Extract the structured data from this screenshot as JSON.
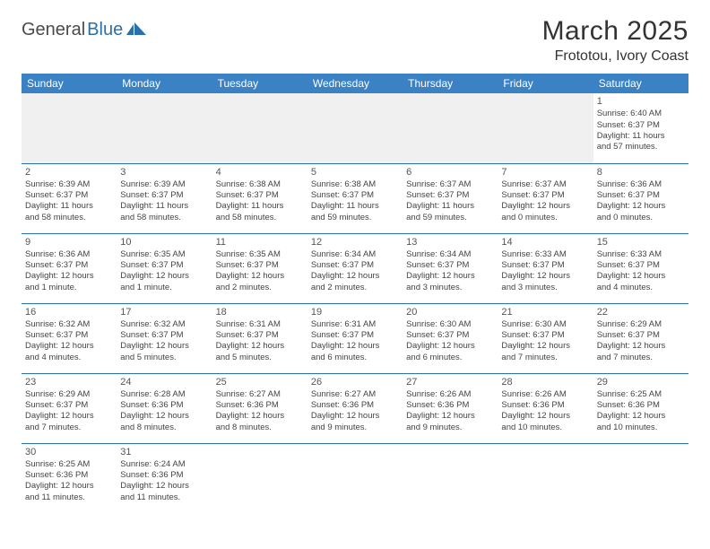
{
  "logo": {
    "general": "General",
    "blue": "Blue",
    "icon_color": "#2b6fab"
  },
  "title": "March 2025",
  "location": "Frototou, Ivory Coast",
  "header_bg": "#3b82c4",
  "header_fg": "#ffffff",
  "cell_border": "#2b6fab",
  "weekdays": [
    "Sunday",
    "Monday",
    "Tuesday",
    "Wednesday",
    "Thursday",
    "Friday",
    "Saturday"
  ],
  "weeks": [
    [
      null,
      null,
      null,
      null,
      null,
      null,
      {
        "n": "1",
        "sr": "Sunrise: 6:40 AM",
        "ss": "Sunset: 6:37 PM",
        "d1": "Daylight: 11 hours",
        "d2": "and 57 minutes."
      }
    ],
    [
      {
        "n": "2",
        "sr": "Sunrise: 6:39 AM",
        "ss": "Sunset: 6:37 PM",
        "d1": "Daylight: 11 hours",
        "d2": "and 58 minutes."
      },
      {
        "n": "3",
        "sr": "Sunrise: 6:39 AM",
        "ss": "Sunset: 6:37 PM",
        "d1": "Daylight: 11 hours",
        "d2": "and 58 minutes."
      },
      {
        "n": "4",
        "sr": "Sunrise: 6:38 AM",
        "ss": "Sunset: 6:37 PM",
        "d1": "Daylight: 11 hours",
        "d2": "and 58 minutes."
      },
      {
        "n": "5",
        "sr": "Sunrise: 6:38 AM",
        "ss": "Sunset: 6:37 PM",
        "d1": "Daylight: 11 hours",
        "d2": "and 59 minutes."
      },
      {
        "n": "6",
        "sr": "Sunrise: 6:37 AM",
        "ss": "Sunset: 6:37 PM",
        "d1": "Daylight: 11 hours",
        "d2": "and 59 minutes."
      },
      {
        "n": "7",
        "sr": "Sunrise: 6:37 AM",
        "ss": "Sunset: 6:37 PM",
        "d1": "Daylight: 12 hours",
        "d2": "and 0 minutes."
      },
      {
        "n": "8",
        "sr": "Sunrise: 6:36 AM",
        "ss": "Sunset: 6:37 PM",
        "d1": "Daylight: 12 hours",
        "d2": "and 0 minutes."
      }
    ],
    [
      {
        "n": "9",
        "sr": "Sunrise: 6:36 AM",
        "ss": "Sunset: 6:37 PM",
        "d1": "Daylight: 12 hours",
        "d2": "and 1 minute."
      },
      {
        "n": "10",
        "sr": "Sunrise: 6:35 AM",
        "ss": "Sunset: 6:37 PM",
        "d1": "Daylight: 12 hours",
        "d2": "and 1 minute."
      },
      {
        "n": "11",
        "sr": "Sunrise: 6:35 AM",
        "ss": "Sunset: 6:37 PM",
        "d1": "Daylight: 12 hours",
        "d2": "and 2 minutes."
      },
      {
        "n": "12",
        "sr": "Sunrise: 6:34 AM",
        "ss": "Sunset: 6:37 PM",
        "d1": "Daylight: 12 hours",
        "d2": "and 2 minutes."
      },
      {
        "n": "13",
        "sr": "Sunrise: 6:34 AM",
        "ss": "Sunset: 6:37 PM",
        "d1": "Daylight: 12 hours",
        "d2": "and 3 minutes."
      },
      {
        "n": "14",
        "sr": "Sunrise: 6:33 AM",
        "ss": "Sunset: 6:37 PM",
        "d1": "Daylight: 12 hours",
        "d2": "and 3 minutes."
      },
      {
        "n": "15",
        "sr": "Sunrise: 6:33 AM",
        "ss": "Sunset: 6:37 PM",
        "d1": "Daylight: 12 hours",
        "d2": "and 4 minutes."
      }
    ],
    [
      {
        "n": "16",
        "sr": "Sunrise: 6:32 AM",
        "ss": "Sunset: 6:37 PM",
        "d1": "Daylight: 12 hours",
        "d2": "and 4 minutes."
      },
      {
        "n": "17",
        "sr": "Sunrise: 6:32 AM",
        "ss": "Sunset: 6:37 PM",
        "d1": "Daylight: 12 hours",
        "d2": "and 5 minutes."
      },
      {
        "n": "18",
        "sr": "Sunrise: 6:31 AM",
        "ss": "Sunset: 6:37 PM",
        "d1": "Daylight: 12 hours",
        "d2": "and 5 minutes."
      },
      {
        "n": "19",
        "sr": "Sunrise: 6:31 AM",
        "ss": "Sunset: 6:37 PM",
        "d1": "Daylight: 12 hours",
        "d2": "and 6 minutes."
      },
      {
        "n": "20",
        "sr": "Sunrise: 6:30 AM",
        "ss": "Sunset: 6:37 PM",
        "d1": "Daylight: 12 hours",
        "d2": "and 6 minutes."
      },
      {
        "n": "21",
        "sr": "Sunrise: 6:30 AM",
        "ss": "Sunset: 6:37 PM",
        "d1": "Daylight: 12 hours",
        "d2": "and 7 minutes."
      },
      {
        "n": "22",
        "sr": "Sunrise: 6:29 AM",
        "ss": "Sunset: 6:37 PM",
        "d1": "Daylight: 12 hours",
        "d2": "and 7 minutes."
      }
    ],
    [
      {
        "n": "23",
        "sr": "Sunrise: 6:29 AM",
        "ss": "Sunset: 6:37 PM",
        "d1": "Daylight: 12 hours",
        "d2": "and 7 minutes."
      },
      {
        "n": "24",
        "sr": "Sunrise: 6:28 AM",
        "ss": "Sunset: 6:36 PM",
        "d1": "Daylight: 12 hours",
        "d2": "and 8 minutes."
      },
      {
        "n": "25",
        "sr": "Sunrise: 6:27 AM",
        "ss": "Sunset: 6:36 PM",
        "d1": "Daylight: 12 hours",
        "d2": "and 8 minutes."
      },
      {
        "n": "26",
        "sr": "Sunrise: 6:27 AM",
        "ss": "Sunset: 6:36 PM",
        "d1": "Daylight: 12 hours",
        "d2": "and 9 minutes."
      },
      {
        "n": "27",
        "sr": "Sunrise: 6:26 AM",
        "ss": "Sunset: 6:36 PM",
        "d1": "Daylight: 12 hours",
        "d2": "and 9 minutes."
      },
      {
        "n": "28",
        "sr": "Sunrise: 6:26 AM",
        "ss": "Sunset: 6:36 PM",
        "d1": "Daylight: 12 hours",
        "d2": "and 10 minutes."
      },
      {
        "n": "29",
        "sr": "Sunrise: 6:25 AM",
        "ss": "Sunset: 6:36 PM",
        "d1": "Daylight: 12 hours",
        "d2": "and 10 minutes."
      }
    ],
    [
      {
        "n": "30",
        "sr": "Sunrise: 6:25 AM",
        "ss": "Sunset: 6:36 PM",
        "d1": "Daylight: 12 hours",
        "d2": "and 11 minutes."
      },
      {
        "n": "31",
        "sr": "Sunrise: 6:24 AM",
        "ss": "Sunset: 6:36 PM",
        "d1": "Daylight: 12 hours",
        "d2": "and 11 minutes."
      },
      null,
      null,
      null,
      null,
      null
    ]
  ]
}
